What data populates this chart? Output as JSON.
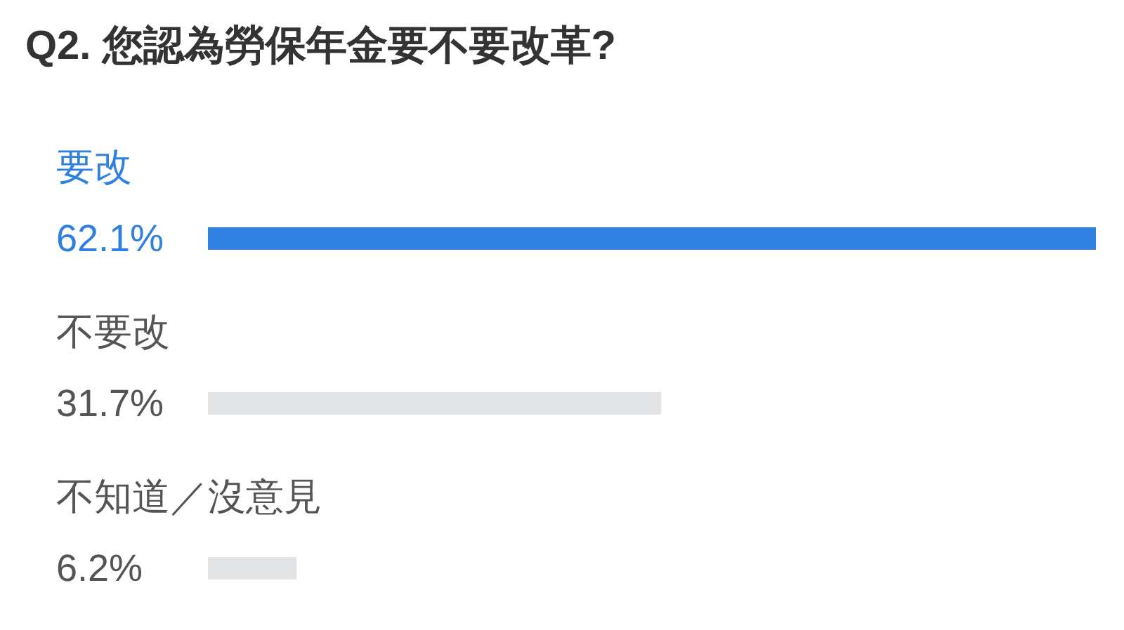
{
  "chart_data": {
    "type": "bar",
    "orientation": "horizontal",
    "title": "Q2. 您認為勞保年金要不要改革?",
    "categories": [
      "要改",
      "不要改",
      "不知道／沒意見"
    ],
    "values": [
      62.1,
      31.7,
      6.2
    ],
    "colors": [
      "#2f80e0",
      "#e1e3e5",
      "#e1e3e5"
    ],
    "value_labels": [
      "62.1%",
      "31.7%",
      "6.2%"
    ]
  }
}
